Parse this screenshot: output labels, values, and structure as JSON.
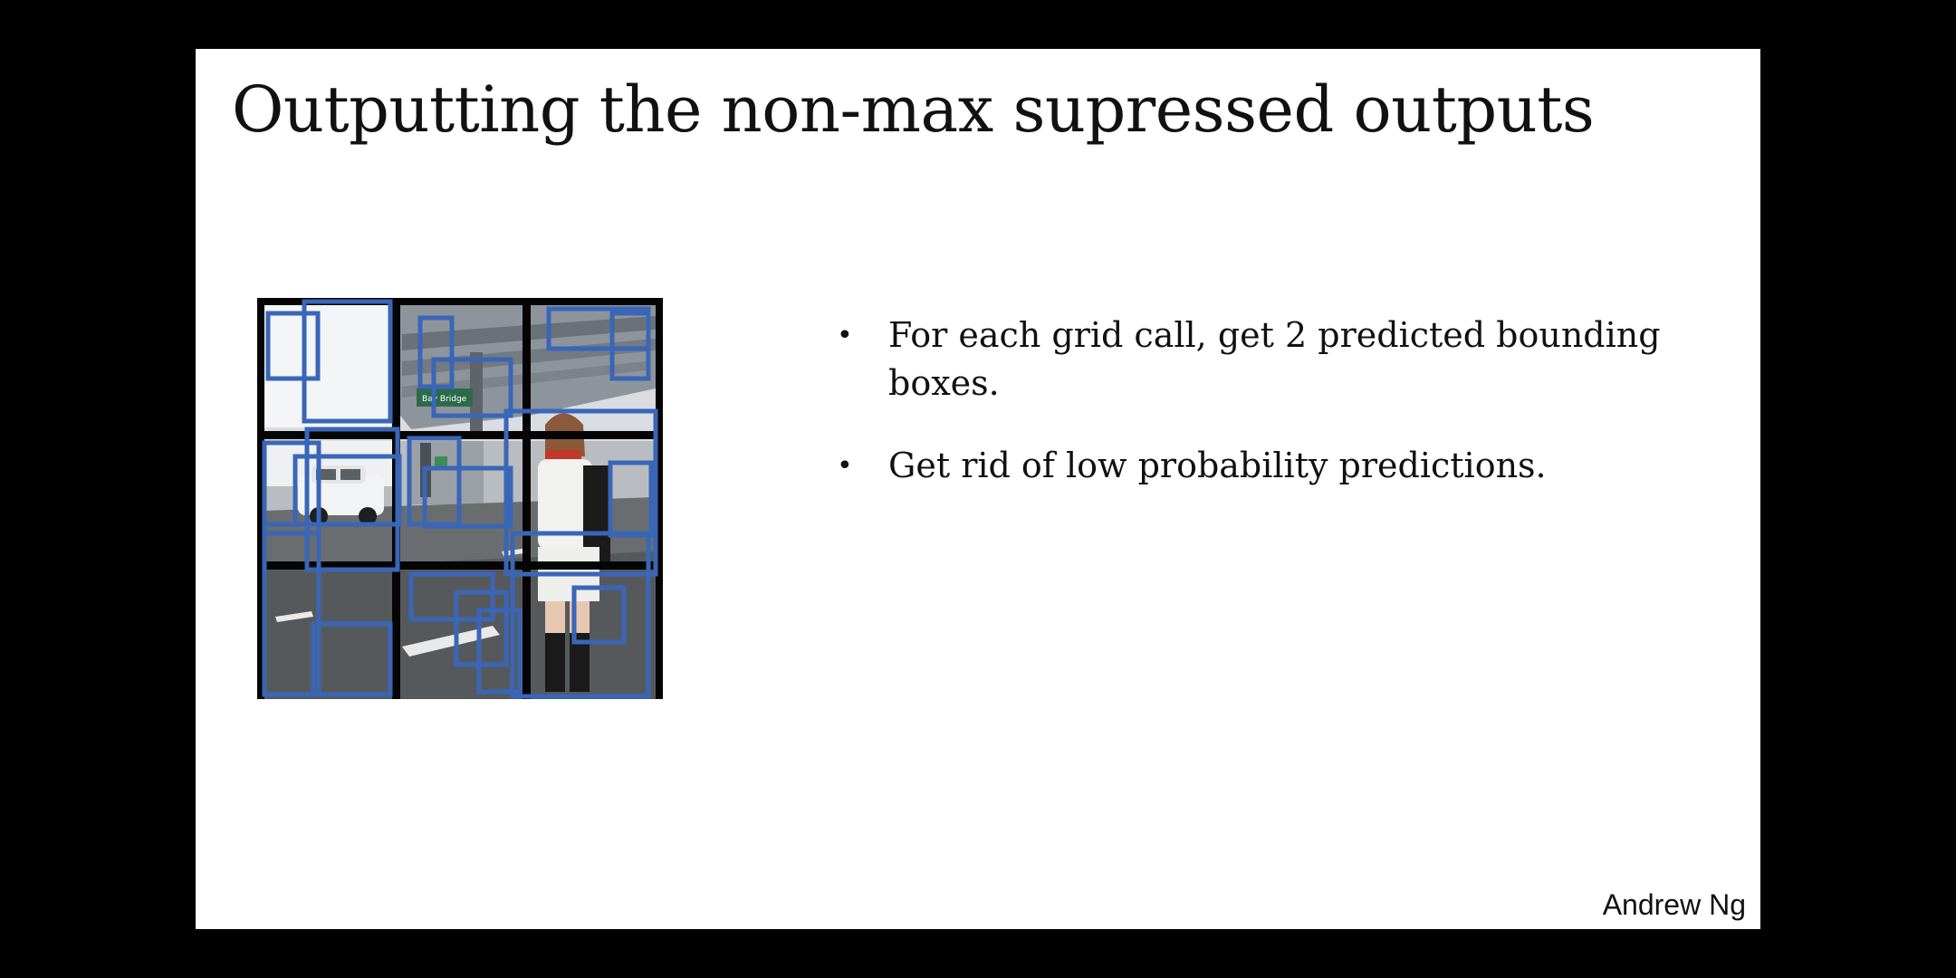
{
  "slide": {
    "title": "Outputting the non-max supressed outputs",
    "author": "Andrew Ng",
    "image": {
      "grid_size": 3,
      "road_sign_text": "Bay Bridge / Oakland",
      "box_color": "#3a66b8"
    },
    "bullets": [
      {
        "marker": "•",
        "text": "For each grid call, get 2 predicted bounding boxes."
      },
      {
        "marker": "•",
        "text": "Get rid of low probability predictions."
      }
    ]
  }
}
